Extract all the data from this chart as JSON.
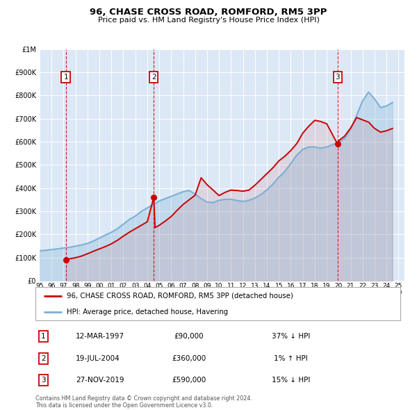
{
  "title": "96, CHASE CROSS ROAD, ROMFORD, RM5 3PP",
  "subtitle": "Price paid vs. HM Land Registry's House Price Index (HPI)",
  "legend_line1": "96, CHASE CROSS ROAD, ROMFORD, RM5 3PP (detached house)",
  "legend_line2": "HPI: Average price, detached house, Havering",
  "footer1": "Contains HM Land Registry data © Crown copyright and database right 2024.",
  "footer2": "This data is licensed under the Open Government Licence v3.0.",
  "sales": [
    {
      "label": "1",
      "date_str": "12-MAR-1997",
      "price": 90000,
      "hpi_rel": "37% ↓ HPI",
      "x": 1997.19
    },
    {
      "label": "2",
      "date_str": "19-JUL-2004",
      "price": 360000,
      "hpi_rel": "1% ↑ HPI",
      "x": 2004.54
    },
    {
      "label": "3",
      "date_str": "27-NOV-2019",
      "price": 590000,
      "hpi_rel": "15% ↓ HPI",
      "x": 2019.91
    }
  ],
  "sale_color": "#cc0000",
  "hpi_color": "#7aafd4",
  "plot_bg": "#dce8f5",
  "ylim": [
    0,
    1000000
  ],
  "xlim_start": 1995.0,
  "xlim_end": 2025.5,
  "grid_color": "#ffffff",
  "hpi_data_years": [
    1995.0,
    1995.5,
    1996.0,
    1996.5,
    1997.0,
    1997.5,
    1998.0,
    1998.5,
    1999.0,
    1999.5,
    2000.0,
    2000.5,
    2001.0,
    2001.5,
    2002.0,
    2002.5,
    2003.0,
    2003.5,
    2004.0,
    2004.5,
    2005.0,
    2005.5,
    2006.0,
    2006.5,
    2007.0,
    2007.5,
    2008.0,
    2008.5,
    2009.0,
    2009.5,
    2010.0,
    2010.5,
    2011.0,
    2011.5,
    2012.0,
    2012.5,
    2013.0,
    2013.5,
    2014.0,
    2014.5,
    2015.0,
    2015.5,
    2016.0,
    2016.5,
    2017.0,
    2017.5,
    2018.0,
    2018.5,
    2019.0,
    2019.5,
    2020.0,
    2020.5,
    2021.0,
    2021.5,
    2022.0,
    2022.5,
    2023.0,
    2023.5,
    2024.0,
    2024.5
  ],
  "hpi_data_vals": [
    130000,
    132000,
    135000,
    138000,
    142000,
    145000,
    150000,
    155000,
    162000,
    172000,
    185000,
    198000,
    210000,
    225000,
    245000,
    265000,
    280000,
    300000,
    315000,
    330000,
    345000,
    355000,
    365000,
    375000,
    385000,
    390000,
    375000,
    355000,
    340000,
    338000,
    348000,
    352000,
    352000,
    347000,
    343000,
    348000,
    358000,
    373000,
    393000,
    418000,
    448000,
    472000,
    508000,
    543000,
    568000,
    578000,
    578000,
    573000,
    578000,
    588000,
    600000,
    615000,
    655000,
    715000,
    778000,
    815000,
    785000,
    748000,
    755000,
    770000
  ],
  "price_years": [
    1997.19,
    1997.5,
    1998.0,
    1998.5,
    1999.0,
    1999.5,
    2000.0,
    2000.5,
    2001.0,
    2001.5,
    2002.0,
    2002.5,
    2003.0,
    2003.5,
    2004.0,
    2004.54,
    2004.65,
    2005.0,
    2005.5,
    2006.0,
    2006.5,
    2007.0,
    2007.5,
    2008.0,
    2008.5,
    2009.0,
    2009.5,
    2010.0,
    2010.5,
    2011.0,
    2011.5,
    2012.0,
    2012.5,
    2013.0,
    2013.5,
    2014.0,
    2014.5,
    2015.0,
    2015.5,
    2016.0,
    2016.5,
    2017.0,
    2017.5,
    2018.0,
    2018.5,
    2019.0,
    2019.91,
    2020.0,
    2020.5,
    2021.0,
    2021.5,
    2022.0,
    2022.5,
    2023.0,
    2023.5,
    2024.0,
    2024.5
  ],
  "price_vals": [
    90000,
    95000,
    100000,
    107000,
    117000,
    128000,
    138000,
    148000,
    160000,
    175000,
    193000,
    210000,
    225000,
    240000,
    255000,
    360000,
    230000,
    240000,
    258000,
    278000,
    305000,
    330000,
    350000,
    370000,
    445000,
    415000,
    392000,
    368000,
    382000,
    392000,
    390000,
    387000,
    392000,
    413000,
    438000,
    463000,
    488000,
    518000,
    538000,
    563000,
    593000,
    638000,
    668000,
    693000,
    688000,
    678000,
    590000,
    605000,
    625000,
    660000,
    705000,
    695000,
    685000,
    658000,
    642000,
    648000,
    658000
  ],
  "yticks": [
    0,
    100000,
    200000,
    300000,
    400000,
    500000,
    600000,
    700000,
    800000,
    900000,
    1000000
  ],
  "ylabels": [
    "£0",
    "£100K",
    "£200K",
    "£300K",
    "£400K",
    "£500K",
    "£600K",
    "£700K",
    "£800K",
    "£900K",
    "£1M"
  ]
}
